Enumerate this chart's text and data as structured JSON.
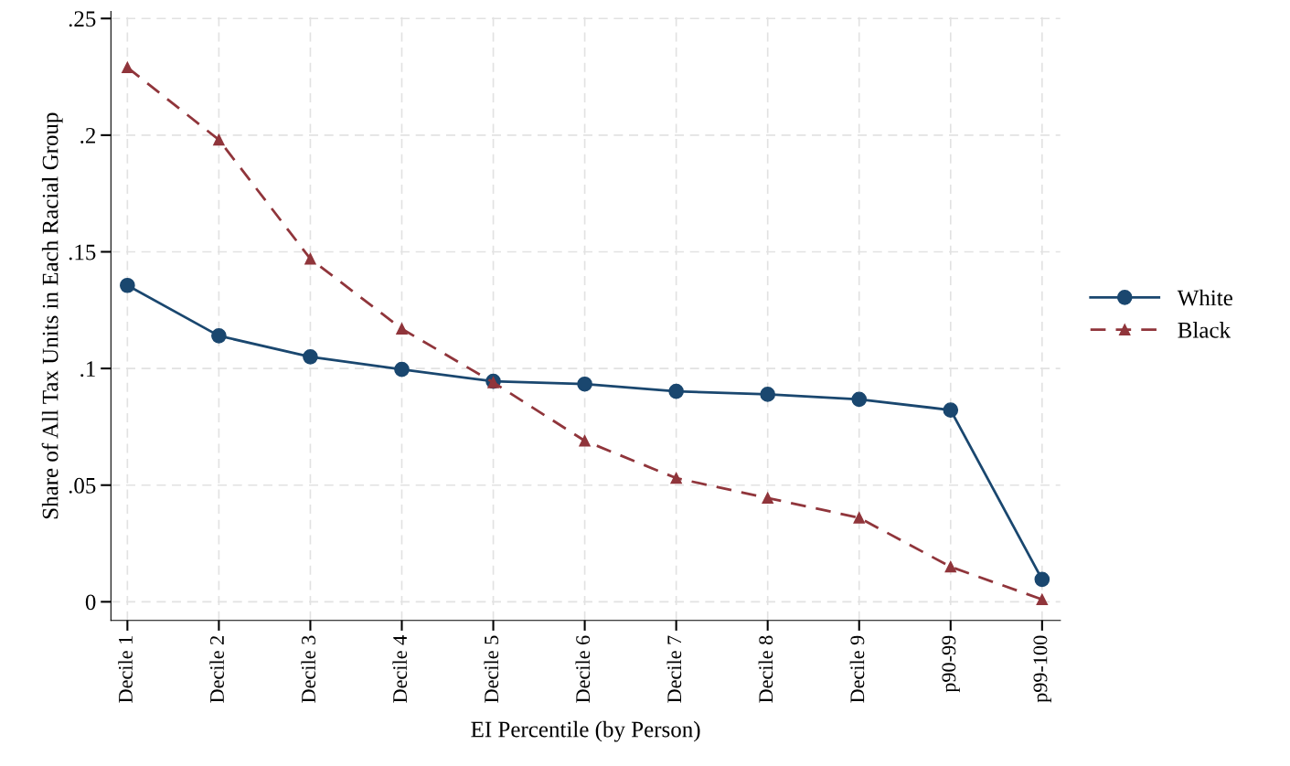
{
  "chart_data": {
    "type": "line",
    "xlabel": "EI Percentile (by Person)",
    "ylabel": "Share of All Tax Units in Each Racial Group",
    "categories": [
      "Decile 1",
      "Decile 2",
      "Decile 3",
      "Decile 4",
      "Decile 5",
      "Decile 6",
      "Decile 7",
      "Decile 8",
      "Decile 9",
      "p90-99",
      "p99-100"
    ],
    "series": [
      {
        "name": "White",
        "color": "#1a476f",
        "marker": "circle",
        "line_style": "solid",
        "values": [
          0.1356,
          0.114,
          0.105,
          0.0996,
          0.0945,
          0.0933,
          0.0902,
          0.0889,
          0.0868,
          0.0822,
          0.0096
        ]
      },
      {
        "name": "Black",
        "color": "#90353b",
        "marker": "triangle",
        "line_style": "dashed",
        "values": [
          0.229,
          0.198,
          0.147,
          0.117,
          0.094,
          0.069,
          0.053,
          0.0445,
          0.036,
          0.015,
          0.001
        ]
      }
    ],
    "ylim": [
      -0.008,
      0.253
    ],
    "yticks": [
      {
        "value": 0,
        "label": "0"
      },
      {
        "value": 0.05,
        "label": ".05"
      },
      {
        "value": 0.1,
        "label": ".1"
      },
      {
        "value": 0.15,
        "label": ".15"
      },
      {
        "value": 0.2,
        "label": ".2"
      },
      {
        "value": 0.25,
        "label": ".25"
      }
    ],
    "grid": true,
    "legend": "right"
  }
}
